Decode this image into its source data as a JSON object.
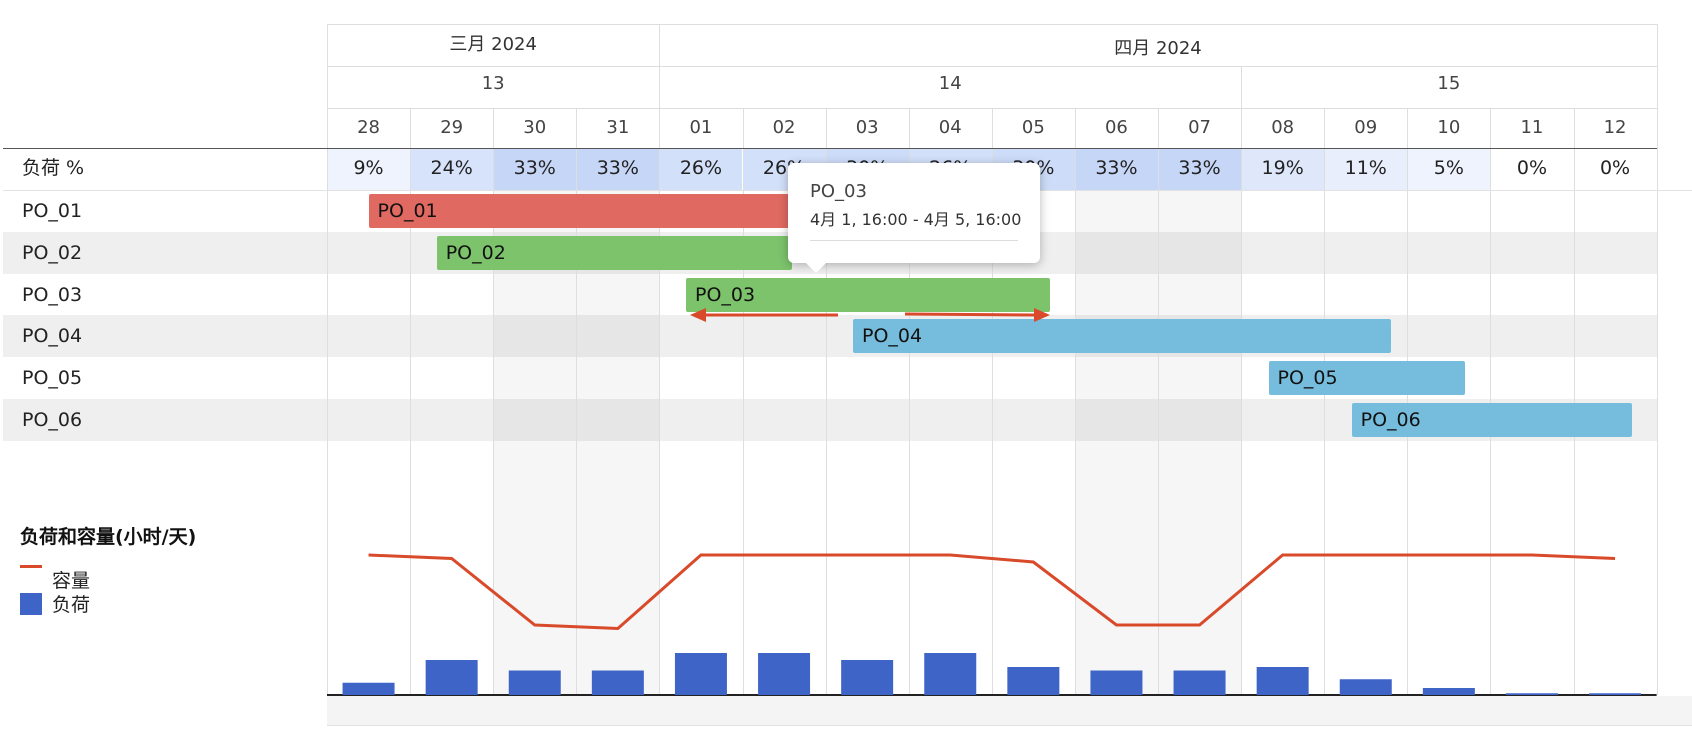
{
  "header": {
    "months": [
      {
        "label": "三月 2024"
      },
      {
        "label": "四月 2024"
      }
    ],
    "weeks": [
      {
        "label": "13"
      },
      {
        "label": "14"
      },
      {
        "label": "15"
      }
    ],
    "days": [
      "28",
      "29",
      "30",
      "31",
      "01",
      "02",
      "03",
      "04",
      "05",
      "06",
      "07",
      "08",
      "09",
      "10",
      "11",
      "12"
    ]
  },
  "load_row": {
    "label": "负荷 %",
    "values": [
      "9%",
      "24%",
      "33%",
      "33%",
      "26%",
      "26%",
      "30%",
      "26%",
      "30%",
      "33%",
      "33%",
      "19%",
      "11%",
      "5%",
      "0%",
      "0%"
    ]
  },
  "tasks": [
    {
      "row": "PO_01",
      "label": "PO_01",
      "color": "#e06a62"
    },
    {
      "row": "PO_02",
      "label": "PO_02",
      "color": "#7cc36c"
    },
    {
      "row": "PO_03",
      "label": "PO_03",
      "color": "#7cc36c"
    },
    {
      "row": "PO_04",
      "label": "PO_04",
      "color": "#76bcdc"
    },
    {
      "row": "PO_05",
      "label": "PO_05",
      "color": "#76bcdc"
    },
    {
      "row": "PO_06",
      "label": "PO_06",
      "color": "#76bcdc"
    }
  ],
  "tooltip": {
    "title": "PO_03",
    "range": "4月 1, 16:00 - 4月 5, 16:00"
  },
  "legend": {
    "title": "负荷和容量(小时/天)",
    "capacity_label": "容量",
    "load_label": "负荷",
    "capacity_color": "#d94a2b",
    "load_color": "#3f64c8"
  },
  "chart_data": {
    "type": "bar",
    "categories": [
      "28",
      "29",
      "30",
      "31",
      "01",
      "02",
      "03",
      "04",
      "05",
      "06",
      "07",
      "08",
      "09",
      "10",
      "11",
      "12"
    ],
    "series": [
      {
        "name": "容量",
        "type": "line",
        "values": [
          8,
          7.8,
          4,
          3.8,
          8,
          8,
          8,
          8,
          7.6,
          4,
          4,
          8,
          8,
          8,
          8,
          7.8
        ]
      },
      {
        "name": "负荷",
        "type": "bar",
        "values": [
          0.7,
          2.0,
          1.4,
          1.4,
          2.4,
          2.4,
          2.0,
          2.4,
          1.6,
          1.4,
          1.4,
          1.6,
          0.9,
          0.4,
          0.1,
          0.1
        ]
      }
    ],
    "ylim": [
      0,
      10
    ]
  }
}
